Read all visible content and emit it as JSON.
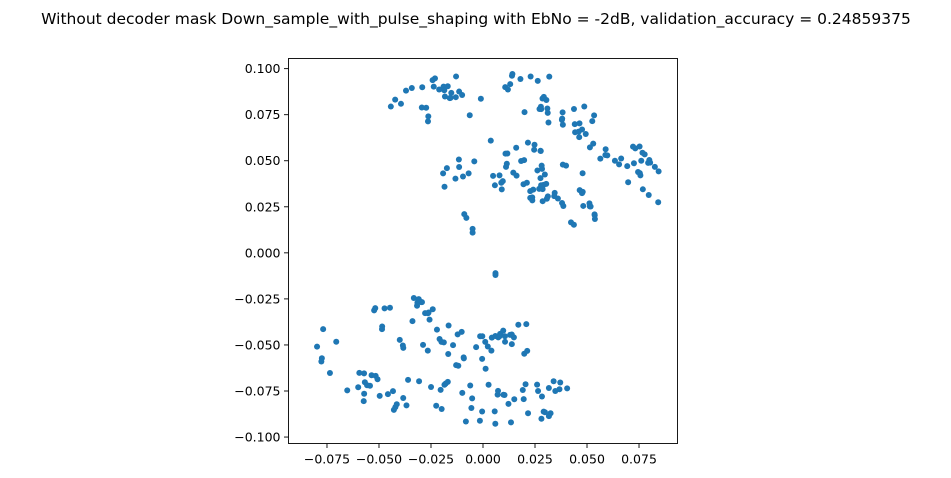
{
  "chart_data": {
    "type": "scatter",
    "title": "Without decoder mask Down_sample_with_pulse_shaping with EbNo = -2dB, validation_accuracy = 0.24859375",
    "xlabel": "",
    "ylabel": "",
    "xlim": [
      -0.0935,
      0.0935
    ],
    "ylim": [
      -0.1035,
      0.1055
    ],
    "grid": false,
    "legend": "none",
    "x_ticks": [
      -0.075,
      -0.05,
      -0.025,
      0.0,
      0.025,
      0.05,
      0.075
    ],
    "x_tick_labels": [
      "−0.075",
      "−0.050",
      "−0.025",
      "0.000",
      "0.025",
      "0.050",
      "0.075"
    ],
    "y_ticks": [
      0.1,
      0.075,
      0.05,
      0.025,
      0.0,
      -0.025,
      -0.05,
      -0.075,
      -0.1
    ],
    "y_tick_labels": [
      "0.100",
      "0.075",
      "0.050",
      "0.025",
      "0.000",
      "−0.025",
      "−0.050",
      "−0.075",
      "−0.100"
    ],
    "marker_color": "#1f77b4",
    "series": [
      {
        "arcs": [
          {
            "r": 0.096,
            "a0": 70,
            "a1": 114,
            "noise": 0.0017
          },
          {
            "r": 0.09,
            "a0": 50,
            "a1": 85,
            "noise": 0.0017
          },
          {
            "r": 0.086,
            "a0": 85,
            "a1": 112,
            "noise": 0.0017
          },
          {
            "r": 0.083,
            "a0": 55,
            "a1": 75,
            "noise": 0.0015
          },
          {
            "r": 0.08,
            "a0": 28,
            "a1": 58,
            "noise": 0.0017
          },
          {
            "r": 0.078,
            "a0": 42,
            "a1": 115,
            "noise": 0.002
          },
          {
            "r": 0.094,
            "a0": 22,
            "a1": 40,
            "noise": 0.0017
          },
          {
            "r": 0.087,
            "a0": 18,
            "a1": 40,
            "noise": 0.0017
          },
          {
            "r": 0.092,
            "a0": 100,
            "a1": 120,
            "noise": 0.0015
          },
          {
            "r": 0.062,
            "a0": 38,
            "a1": 100,
            "noise": 0.0017
          },
          {
            "r": 0.057,
            "a0": 18,
            "a1": 42,
            "noise": 0.0017
          },
          {
            "r": 0.053,
            "a0": 25,
            "a1": 105,
            "noise": 0.0017
          },
          {
            "r": 0.048,
            "a0": 25,
            "a1": 115,
            "noise": 0.0015
          },
          {
            "r": 0.046,
            "a0": 18,
            "a1": 110,
            "noise": 0.0017
          },
          {
            "r": 0.043,
            "a0": 20,
            "a1": 112,
            "noise": 0.0015
          },
          {
            "r": 0.039,
            "a0": 45,
            "a1": 120,
            "noise": 0.0017
          },
          {
            "r": 0.096,
            "a0": 204,
            "a1": 245,
            "noise": 0.0017
          },
          {
            "r": 0.086,
            "a0": 208,
            "a1": 280,
            "noise": 0.0017
          },
          {
            "r": 0.092,
            "a0": 262,
            "a1": 292,
            "noise": 0.0017
          },
          {
            "r": 0.082,
            "a0": 225,
            "a1": 300,
            "noise": 0.0017
          },
          {
            "r": 0.078,
            "a0": 242,
            "a1": 300,
            "noise": 0.0017
          },
          {
            "r": 0.074,
            "a0": 246,
            "a1": 296,
            "noise": 0.0017
          },
          {
            "r": 0.09,
            "a0": 225,
            "a1": 262,
            "noise": 0.0017
          },
          {
            "r": 0.062,
            "a0": 210,
            "a1": 280,
            "noise": 0.0017
          },
          {
            "r": 0.057,
            "a0": 205,
            "a1": 300,
            "noise": 0.0017
          },
          {
            "r": 0.052,
            "a0": 213,
            "a1": 290,
            "noise": 0.0015
          },
          {
            "r": 0.047,
            "a0": 218,
            "a1": 290,
            "noise": 0.0017
          },
          {
            "r": 0.044,
            "a0": 268,
            "a1": 302,
            "noise": 0.0017
          },
          {
            "r": 0.041,
            "a0": 213,
            "a1": 232,
            "noise": 0.0015
          }
        ],
        "points": [
          {
            "x": -0.009,
            "y": 0.021
          },
          {
            "x": -0.008,
            "y": 0.019
          },
          {
            "x": -0.005,
            "y": 0.013
          },
          {
            "x": -0.005,
            "y": 0.011
          },
          {
            "x": 0.006,
            "y": -0.011
          },
          {
            "x": 0.006,
            "y": -0.012
          }
        ]
      }
    ]
  }
}
